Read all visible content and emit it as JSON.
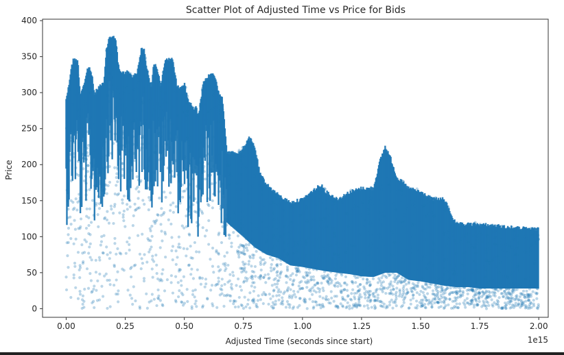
{
  "chart_data": {
    "type": "scatter",
    "title": "Scatter Plot of Adjusted Time vs Price for Bids",
    "xlabel": "Adjusted Time (seconds since start)",
    "ylabel": "Price",
    "x_scale_label": "1e15",
    "xlim": [
      -0.1,
      2.04
    ],
    "ylim": [
      -12,
      402
    ],
    "x_ticks": [
      0.0,
      0.25,
      0.5,
      0.75,
      1.0,
      1.25,
      1.5,
      1.75,
      2.0
    ],
    "x_tick_labels": [
      "0.00",
      "0.25",
      "0.50",
      "0.75",
      "1.00",
      "1.25",
      "1.50",
      "1.75",
      "2.00"
    ],
    "y_ticks": [
      0,
      50,
      100,
      150,
      200,
      250,
      300,
      350,
      400
    ],
    "y_tick_labels": [
      "0",
      "50",
      "100",
      "150",
      "200",
      "250",
      "300",
      "350",
      "400"
    ],
    "grid": false,
    "legend": "none",
    "series": [
      {
        "color": "#1f77b4",
        "alpha": 0.3,
        "upper_envelope": {
          "x": [
            0.0,
            0.01,
            0.02,
            0.03,
            0.04,
            0.05,
            0.06,
            0.08,
            0.09,
            0.1,
            0.11,
            0.12,
            0.14,
            0.16,
            0.17,
            0.18,
            0.19,
            0.2,
            0.21,
            0.22,
            0.23,
            0.25,
            0.26,
            0.28,
            0.3,
            0.31,
            0.32,
            0.33,
            0.34,
            0.36,
            0.37,
            0.38,
            0.39,
            0.4,
            0.42,
            0.44,
            0.45,
            0.46,
            0.47,
            0.5,
            0.52,
            0.54,
            0.55,
            0.56,
            0.58,
            0.6,
            0.62,
            0.63,
            0.64,
            0.65,
            0.66,
            0.68,
            0.7,
            0.72,
            0.74,
            0.76,
            0.77,
            0.78,
            0.79,
            0.8,
            0.82,
            0.85,
            0.9,
            0.95,
            1.0,
            1.05,
            1.08,
            1.1,
            1.15,
            1.2,
            1.25,
            1.3,
            1.33,
            1.35,
            1.37,
            1.4,
            1.45,
            1.5,
            1.55,
            1.6,
            1.65,
            1.75,
            1.85,
            1.9,
            2.0
          ],
          "y": [
            295,
            310,
            335,
            348,
            350,
            345,
            300,
            320,
            335,
            338,
            325,
            300,
            312,
            315,
            360,
            378,
            380,
            383,
            375,
            345,
            330,
            330,
            332,
            325,
            330,
            350,
            365,
            362,
            340,
            310,
            340,
            342,
            330,
            310,
            350,
            348,
            352,
            330,
            310,
            315,
            290,
            280,
            282,
            270,
            315,
            325,
            330,
            325,
            310,
            300,
            300,
            220,
            220,
            220,
            220,
            232,
            240,
            238,
            232,
            225,
            190,
            175,
            160,
            150,
            155,
            168,
            175,
            165,
            155,
            165,
            170,
            170,
            210,
            228,
            215,
            185,
            170,
            165,
            155,
            155,
            120,
            120,
            117,
            115,
            113
          ]
        },
        "dense_lower_edge": {
          "x": [
            0.68,
            0.75,
            0.8,
            0.85,
            0.9,
            0.95,
            1.0,
            1.05,
            1.1,
            1.15,
            1.2,
            1.25,
            1.3,
            1.35,
            1.4,
            1.45,
            1.5,
            1.55,
            1.6,
            1.65,
            1.7,
            1.75,
            1.8,
            1.85,
            1.9,
            1.95,
            2.0
          ],
          "y": [
            120,
            100,
            85,
            75,
            70,
            60,
            58,
            55,
            52,
            50,
            48,
            45,
            44,
            50,
            50,
            40,
            38,
            35,
            32,
            30,
            30,
            28,
            28,
            28,
            28,
            28,
            28
          ]
        },
        "sparse_lower_bound": 0
      }
    ]
  }
}
